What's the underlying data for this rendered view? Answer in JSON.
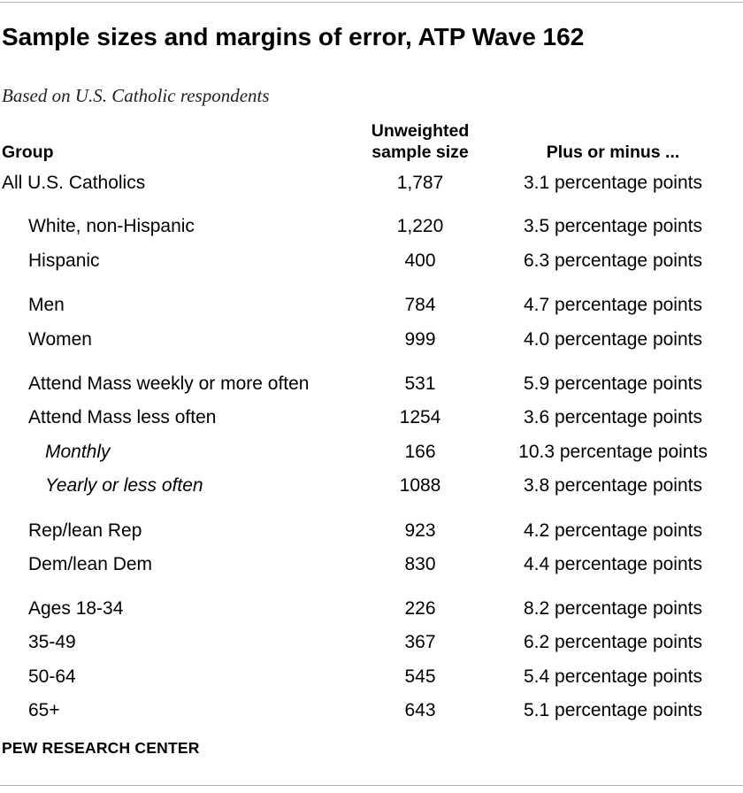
{
  "title": "Sample sizes and margins of error, ATP Wave 162",
  "subtitle": "Based on U.S. Catholic respondents",
  "headers": {
    "group": "Group",
    "sample_line1": "Unweighted",
    "sample_line2": "sample size",
    "margin": "Plus or minus ..."
  },
  "rows": [
    {
      "label": "All U.S. Catholics",
      "n": "1,787",
      "moe": "3.1 percentage points",
      "level": 0
    },
    {
      "label": "White, non-Hispanic",
      "n": "1,220",
      "moe": "3.5 percentage points",
      "level": 1
    },
    {
      "label": "Hispanic",
      "n": "400",
      "moe": "6.3 percentage points",
      "level": 1
    },
    {
      "label": "Men",
      "n": "784",
      "moe": "4.7 percentage points",
      "level": 1
    },
    {
      "label": "Women",
      "n": "999",
      "moe": "4.0 percentage points",
      "level": 1
    },
    {
      "label": "Attend Mass weekly or more often",
      "n": "531",
      "moe": "5.9 percentage points",
      "level": 1
    },
    {
      "label": "Attend Mass less often",
      "n": "1254",
      "moe": "3.6 percentage points",
      "level": 1
    },
    {
      "label": "Monthly",
      "n": "166",
      "moe": "10.3 percentage points",
      "level": 2
    },
    {
      "label": "Yearly or less often",
      "n": "1088",
      "moe": "3.8 percentage points",
      "level": 2
    },
    {
      "label": "Rep/lean Rep",
      "n": "923",
      "moe": "4.2 percentage points",
      "level": 1
    },
    {
      "label": "Dem/lean Dem",
      "n": "830",
      "moe": "4.4 percentage points",
      "level": 1
    },
    {
      "label": "Ages 18-34",
      "n": "226",
      "moe": "8.2 percentage points",
      "level": 1
    },
    {
      "label": "35-49",
      "n": "367",
      "moe": "6.2 percentage points",
      "level": 1
    },
    {
      "label": "50-64",
      "n": "545",
      "moe": "5.4 percentage points",
      "level": 1
    },
    {
      "label": "65+",
      "n": "643",
      "moe": "5.1 percentage points",
      "level": 1
    }
  ],
  "source": "PEW RESEARCH CENTER"
}
